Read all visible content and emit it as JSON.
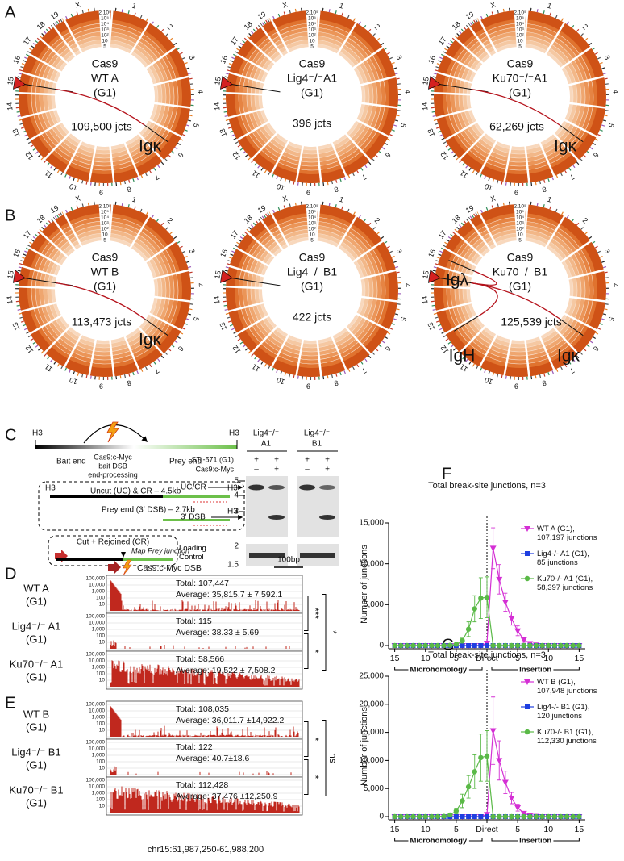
{
  "panel_labels": [
    "A",
    "B",
    "C",
    "D",
    "E",
    "F",
    "G"
  ],
  "circos": {
    "chromosomes": [
      "1",
      "2",
      "3",
      "4",
      "5",
      "6",
      "7",
      "8",
      "9",
      "10",
      "11",
      "12",
      "13",
      "14",
      "15",
      "16",
      "17",
      "18",
      "19",
      "X"
    ],
    "scale": [
      "2.10⁵",
      "10⁵",
      "10⁴",
      "10³",
      "10²",
      "10",
      "5"
    ],
    "plots": [
      {
        "title": [
          "Cas9",
          "WT A",
          "(G1)"
        ],
        "count": "109,500 jcts",
        "loci": [
          "Igκ"
        ]
      },
      {
        "title": [
          "Cas9",
          "Lig4⁻/⁻A1",
          "(G1)"
        ],
        "count": "396 jcts",
        "loci": []
      },
      {
        "title": [
          "Cas9",
          "Ku70⁻/⁻A1",
          "(G1)"
        ],
        "count": "62,269 jcts",
        "loci": [
          "Igκ"
        ]
      },
      {
        "title": [
          "Cas9",
          "WT B",
          "(G1)"
        ],
        "count": "113,473 jcts",
        "loci": [
          "Igκ"
        ]
      },
      {
        "title": [
          "Cas9",
          "Lig4⁻/⁻B1",
          "(G1)"
        ],
        "count": "422 jcts",
        "loci": []
      },
      {
        "title": [
          "Cas9",
          "Ku70⁻/⁻B1",
          "(G1)"
        ],
        "count": "125,539 jcts",
        "loci": [
          "Igλ",
          "IgH",
          "Igκ"
        ]
      }
    ]
  },
  "schematic": {
    "h3": "H3",
    "bait": "Bait end",
    "nuclease": [
      "Cas9:c-Myc",
      "bait DSB",
      "end-processing"
    ],
    "prey": "Prey end",
    "uncut": "Uncut (UC) & CR – 4.5kb",
    "prey_end": "Prey end (3′ DSB) – 2.7kb",
    "rejoined": "Cut + Rejoined (CR)",
    "map": "Map Prey junction"
  },
  "gel": {
    "lanes": [
      [
        "Lig4⁻/⁻",
        "A1"
      ],
      [
        "Lig4⁻/⁻",
        "B1"
      ]
    ],
    "rows": [
      {
        "label": "STI-571 (G1)",
        "marks": [
          "+",
          "+",
          "+",
          "+"
        ]
      },
      {
        "label": "Cas9:c-Myc",
        "marks": [
          "–",
          "+",
          "–",
          "+"
        ]
      }
    ],
    "bands": [
      "UC/CR",
      "3′ DSB"
    ],
    "loading": "Loading Control",
    "markers": [
      "5",
      "4",
      "3"
    ],
    "loading_markers": [
      "2",
      "1.5"
    ]
  },
  "tracks": {
    "header": "Cas9:c-Myc DSB",
    "scale_bar": "100bp",
    "yaxis": [
      "100,000",
      "10,000",
      "1,000",
      "100",
      "10"
    ],
    "xlabel": "chr15:61,987,250-61,988,200",
    "groups": [
      {
        "rows": [
          {
            "label": [
              "WT A",
              "(G1)"
            ],
            "total": "Total: 107,447",
            "average": "Average: 35,815.7 ± 7,592.1"
          },
          {
            "label": [
              "Lig4⁻/⁻ A1",
              "(G1)"
            ],
            "total": "Total: 115",
            "average": "Average: 38.33 ± 5.69"
          },
          {
            "label": [
              "Ku70⁻/⁻ A1",
              "(G1)"
            ],
            "total": "Total: 58,566",
            "average": "Average: 19,522 ± 7,508.2"
          }
        ],
        "significance": [
          "***",
          "*",
          "*"
        ]
      },
      {
        "rows": [
          {
            "label": [
              "WT B",
              "(G1)"
            ],
            "total": "Total: 108,035",
            "average": "Average: 36,011.7 ±14,922.2"
          },
          {
            "label": [
              "Lig4⁻/⁻ B1",
              "(G1)"
            ],
            "total": "Total: 122",
            "average": "Average: 40.7±18.6"
          },
          {
            "label": [
              "Ku70⁻/⁻ B1",
              "(G1)"
            ],
            "total": "Total: 112,428",
            "average": "Average: 37,476 ±12,250.9"
          }
        ],
        "significance": [
          "*",
          "*",
          "ns"
        ]
      }
    ]
  },
  "chart_data": [
    {
      "type": "line",
      "title": "Total break-site junctions, n=3",
      "ylabel": "Number of junctions",
      "x": [
        -15,
        -14,
        -13,
        -12,
        -11,
        -10,
        -9,
        -8,
        -7,
        -6,
        -5,
        -4,
        -3,
        -2,
        -1,
        0,
        1,
        2,
        3,
        4,
        5,
        6,
        7,
        8,
        9,
        10,
        11,
        12,
        13,
        14,
        15
      ],
      "xlim": [
        -16,
        16
      ],
      "xticks": [
        {
          "value": -15,
          "label": "15"
        },
        {
          "value": -10,
          "label": "10"
        },
        {
          "value": -5,
          "label": "5"
        },
        {
          "value": 0,
          "label": "Direct"
        },
        {
          "value": 5,
          "label": "5"
        },
        {
          "value": 10,
          "label": "10"
        },
        {
          "value": 15,
          "label": "15"
        }
      ],
      "ylim": [
        0,
        15000
      ],
      "yticks": [
        0,
        {
          "value": 5000,
          "label": "5,000"
        },
        {
          "value": 10000,
          "label": "10,000"
        },
        {
          "value": 15000,
          "label": "15,000"
        }
      ],
      "x_groups": [
        "Microhomology",
        "Insertion"
      ],
      "grid": false,
      "legend": "upper right",
      "series": [
        {
          "name": "WT A (G1),\n107,197 junctions",
          "color": "#d42fd4",
          "marker": "triangle-down",
          "values": [
            0,
            0,
            0,
            0,
            0,
            0,
            0,
            0,
            0,
            0,
            0,
            0,
            0,
            0,
            0,
            300,
            11900,
            8100,
            5300,
            3300,
            1800,
            700,
            250,
            80,
            0,
            0,
            0,
            0,
            0,
            0,
            0
          ],
          "errors": [
            0,
            0,
            0,
            0,
            0,
            0,
            0,
            0,
            0,
            0,
            0,
            0,
            0,
            0,
            0,
            100,
            2500,
            1800,
            1100,
            800,
            600,
            300,
            150,
            50,
            0,
            0,
            0,
            0,
            0,
            0,
            0
          ]
        },
        {
          "name": "Lig4-/- A1 (G1),\n85 junctions",
          "color": "#1f3fe0",
          "marker": "square",
          "values": [
            0,
            0,
            0,
            0,
            0,
            0,
            0,
            0,
            0,
            0,
            0,
            0,
            0,
            0,
            0,
            0,
            0,
            0,
            0,
            0,
            0,
            0,
            0,
            0,
            0,
            0,
            0,
            0,
            0,
            0,
            0
          ]
        },
        {
          "name": "Ku70-/- A1 (G1),\n58,397 junctions",
          "color": "#5ab947",
          "marker": "circle",
          "values": [
            0,
            0,
            0,
            0,
            0,
            0,
            0,
            0,
            0,
            30,
            150,
            600,
            2000,
            4500,
            5800,
            5900,
            0,
            0,
            0,
            0,
            0,
            0,
            0,
            0,
            0,
            0,
            0,
            0,
            0,
            0,
            0
          ],
          "errors": [
            0,
            0,
            0,
            0,
            0,
            0,
            0,
            0,
            0,
            20,
            100,
            300,
            900,
            1600,
            2500,
            2500,
            0,
            0,
            0,
            0,
            0,
            0,
            0,
            0,
            0,
            0,
            0,
            0,
            0,
            0,
            0
          ]
        }
      ]
    },
    {
      "type": "line",
      "title": "Total break-site junctions, n=3",
      "ylabel": "Number of junctions",
      "x": [
        -15,
        -14,
        -13,
        -12,
        -11,
        -10,
        -9,
        -8,
        -7,
        -6,
        -5,
        -4,
        -3,
        -2,
        -1,
        0,
        1,
        2,
        3,
        4,
        5,
        6,
        7,
        8,
        9,
        10,
        11,
        12,
        13,
        14,
        15
      ],
      "xlim": [
        -16,
        16
      ],
      "xticks": [
        {
          "value": -15,
          "label": "15"
        },
        {
          "value": -10,
          "label": "10"
        },
        {
          "value": -5,
          "label": "5"
        },
        {
          "value": 0,
          "label": "Direct"
        },
        {
          "value": 5,
          "label": "5"
        },
        {
          "value": 10,
          "label": "10"
        },
        {
          "value": 15,
          "label": "15"
        }
      ],
      "ylim": [
        0,
        25000
      ],
      "yticks": [
        0,
        {
          "value": 5000,
          "label": "5,000"
        },
        {
          "value": 10000,
          "label": "10,000"
        },
        {
          "value": 15000,
          "label": "15,000"
        },
        {
          "value": 20000,
          "label": "20,000"
        },
        {
          "value": 25000,
          "label": "25,000"
        }
      ],
      "x_groups": [
        "Microhomology",
        "Insertion"
      ],
      "grid": false,
      "legend": "upper right",
      "series": [
        {
          "name": "WT B (G1),\n107,948 junctions",
          "color": "#d42fd4",
          "marker": "triangle-down",
          "values": [
            0,
            0,
            0,
            0,
            0,
            0,
            0,
            0,
            0,
            0,
            0,
            0,
            0,
            0,
            0,
            400,
            15300,
            10000,
            6100,
            3300,
            1600,
            600,
            200,
            50,
            0,
            0,
            0,
            0,
            0,
            0,
            0
          ],
          "errors": [
            0,
            0,
            0,
            0,
            0,
            0,
            0,
            0,
            0,
            0,
            0,
            0,
            0,
            0,
            0,
            200,
            6000,
            3500,
            2000,
            1000,
            600,
            300,
            100,
            0,
            0,
            0,
            0,
            0,
            0,
            0,
            0
          ]
        },
        {
          "name": "Lig4-/- B1 (G1),\n120 junctions",
          "color": "#1f3fe0",
          "marker": "square",
          "values": [
            0,
            0,
            0,
            0,
            0,
            0,
            0,
            0,
            0,
            0,
            0,
            0,
            0,
            0,
            0,
            0,
            0,
            0,
            0,
            0,
            0,
            0,
            0,
            0,
            0,
            0,
            0,
            0,
            0,
            0,
            0
          ]
        },
        {
          "name": "Ku70-/- B1 (G1),\n112,330 junctions",
          "color": "#5ab947",
          "marker": "circle",
          "values": [
            0,
            0,
            0,
            0,
            0,
            0,
            0,
            0,
            50,
            300,
            1000,
            2800,
            5300,
            8000,
            10500,
            10800,
            0,
            0,
            0,
            0,
            0,
            0,
            0,
            0,
            0,
            0,
            0,
            0,
            0,
            0,
            0
          ],
          "errors": [
            0,
            0,
            0,
            0,
            0,
            0,
            0,
            0,
            30,
            150,
            500,
            1200,
            2000,
            3000,
            4200,
            4500,
            0,
            0,
            0,
            0,
            0,
            0,
            0,
            0,
            0,
            0,
            0,
            0,
            0,
            0,
            0
          ]
        }
      ]
    }
  ]
}
